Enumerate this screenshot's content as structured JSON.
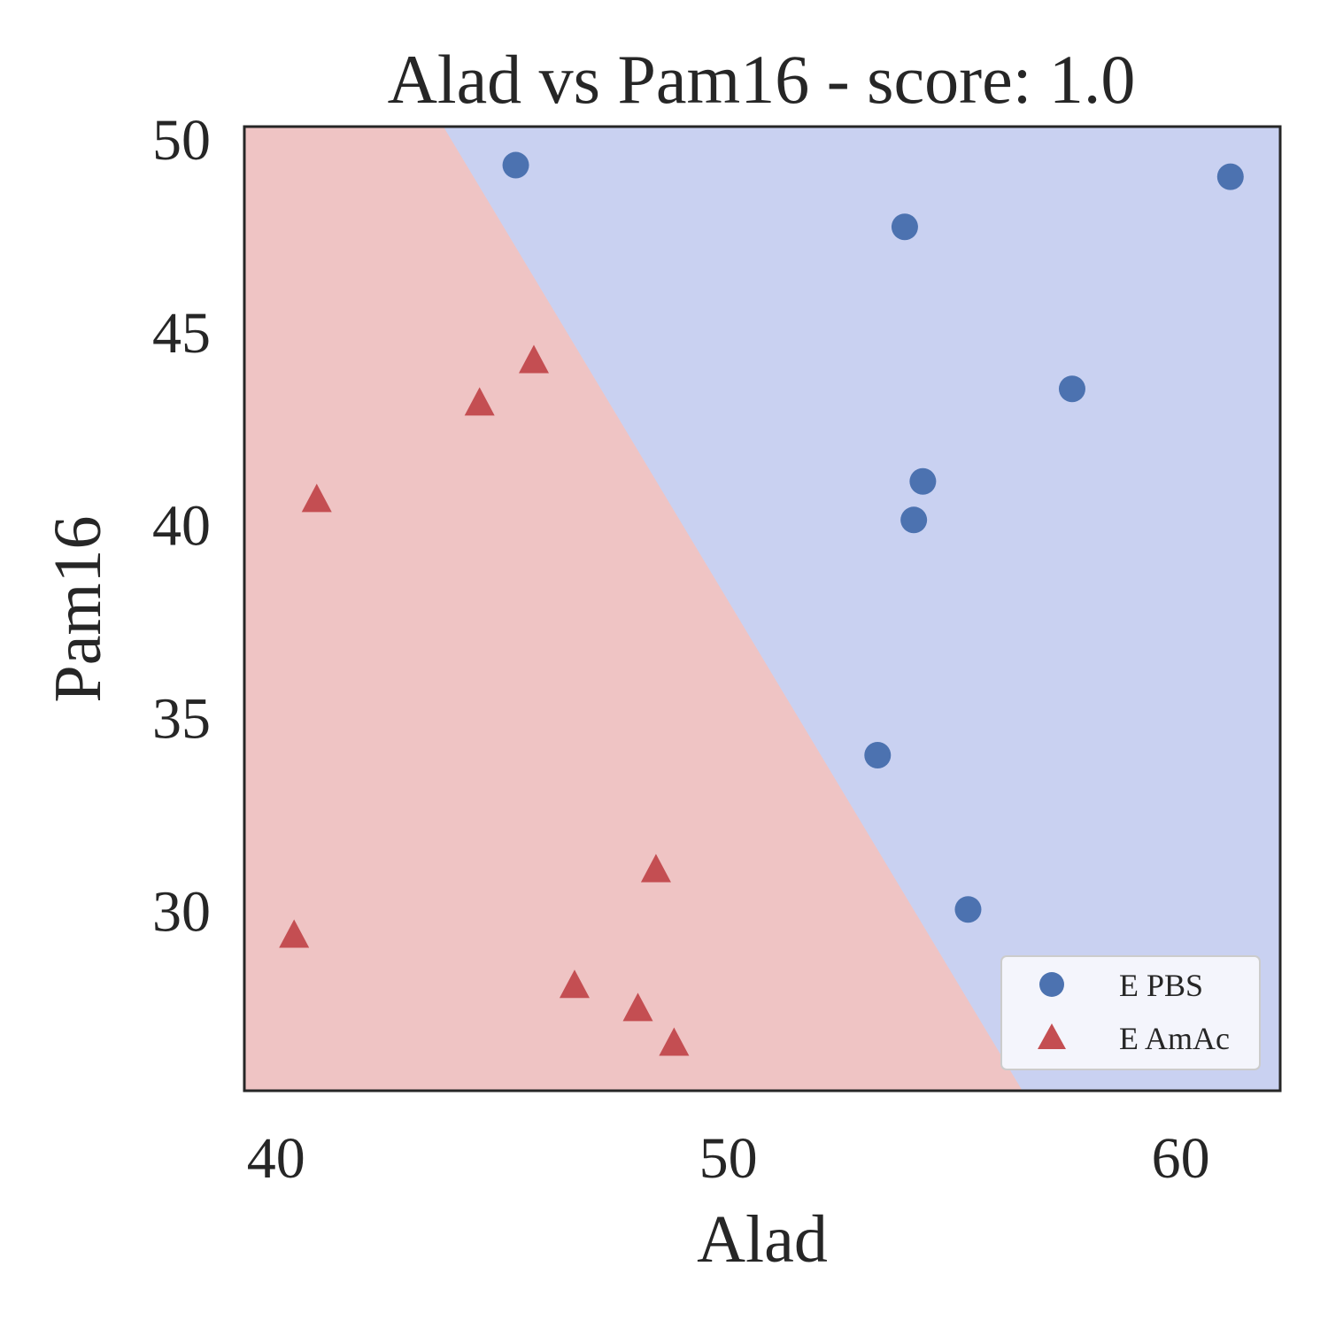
{
  "chart_data": {
    "type": "scatter",
    "title": "Alad vs Pam16 - score: 1.0",
    "xlabel": "Alad",
    "ylabel": "Pam16",
    "xlim": [
      39.3,
      62.2
    ],
    "ylim": [
      25.3,
      50.3
    ],
    "xticks": [
      40,
      50,
      60
    ],
    "yticks": [
      30,
      35,
      40,
      45,
      50
    ],
    "grid": false,
    "legend_position": "lower-right",
    "decision_boundary": {
      "line": [
        [
          43.7,
          50.3
        ],
        [
          56.5,
          25.3
        ]
      ],
      "left_region_class": "E AmAc",
      "right_region_class": "E PBS",
      "left_color": "#efc4c4",
      "right_color": "#c9d1f1"
    },
    "series": [
      {
        "name": "E PBS",
        "marker": "circle",
        "color": "#4c72b0",
        "points": [
          [
            45.3,
            49.3
          ],
          [
            53.9,
            47.7
          ],
          [
            61.1,
            49.0
          ],
          [
            57.6,
            43.5
          ],
          [
            54.3,
            41.1
          ],
          [
            54.1,
            40.1
          ],
          [
            53.3,
            34.0
          ],
          [
            55.3,
            30.0
          ]
        ]
      },
      {
        "name": "E AmAc",
        "marker": "triangle",
        "color": "#c44e52",
        "points": [
          [
            45.7,
            44.2
          ],
          [
            44.5,
            43.1
          ],
          [
            40.9,
            40.6
          ],
          [
            48.4,
            31.0
          ],
          [
            40.4,
            29.3
          ],
          [
            46.6,
            28.0
          ],
          [
            48.0,
            27.4
          ],
          [
            48.8,
            26.5
          ]
        ]
      }
    ]
  }
}
